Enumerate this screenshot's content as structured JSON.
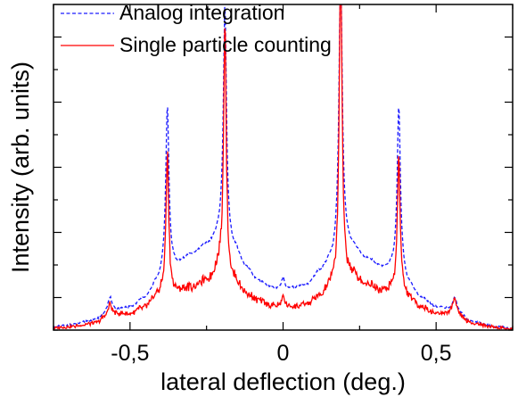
{
  "chart_data": {
    "type": "line",
    "title": "",
    "xlabel": "lateral deflection (deg.)",
    "ylabel": "Intensity (arb. units)",
    "xlim": [
      -0.75,
      0.75
    ],
    "ylim": [
      0,
      1.0
    ],
    "x_ticks": [
      {
        "value": -0.5,
        "label": "-0,5"
      },
      {
        "value": 0,
        "label": "0"
      },
      {
        "value": 0.5,
        "label": "0,5"
      }
    ],
    "y_tick_labels_shown": false,
    "grid": false,
    "legend_position": "top-left",
    "series": [
      {
        "name": "Analog integration",
        "color": "#1a1aff",
        "style": "dashed",
        "baseline": [
          [
            -0.75,
            0.01
          ],
          [
            -0.7,
            0.015
          ],
          [
            -0.62,
            0.03
          ],
          [
            -0.56,
            0.06
          ],
          [
            -0.5,
            0.07
          ],
          [
            -0.45,
            0.1
          ],
          [
            -0.41,
            0.15
          ],
          [
            -0.38,
            0.2
          ],
          [
            -0.35,
            0.2
          ],
          [
            -0.3,
            0.23
          ],
          [
            -0.25,
            0.26
          ],
          [
            -0.2,
            0.3
          ],
          [
            -0.16,
            0.25
          ],
          [
            -0.12,
            0.19
          ],
          [
            -0.08,
            0.15
          ],
          [
            -0.04,
            0.13
          ],
          [
            0,
            0.12
          ],
          [
            0.04,
            0.13
          ],
          [
            0.08,
            0.14
          ],
          [
            0.12,
            0.18
          ],
          [
            0.16,
            0.22
          ],
          [
            0.19,
            0.3
          ],
          [
            0.22,
            0.26
          ],
          [
            0.27,
            0.22
          ],
          [
            0.33,
            0.19
          ],
          [
            0.38,
            0.2
          ],
          [
            0.41,
            0.14
          ],
          [
            0.45,
            0.1
          ],
          [
            0.5,
            0.07
          ],
          [
            0.56,
            0.06
          ],
          [
            0.62,
            0.025
          ],
          [
            0.7,
            0.01
          ],
          [
            0.75,
            0.005
          ]
        ],
        "peaks": [
          {
            "x": -0.565,
            "y": 0.1,
            "width": 0.008
          },
          {
            "x": -0.378,
            "y": 0.69,
            "width": 0.006
          },
          {
            "x": -0.19,
            "y": 1.0,
            "width": 0.006
          },
          {
            "x": 0.0,
            "y": 0.16,
            "width": 0.007
          },
          {
            "x": 0.188,
            "y": 1.12,
            "width": 0.006
          },
          {
            "x": 0.378,
            "y": 0.69,
            "width": 0.006
          },
          {
            "x": 0.56,
            "y": 0.1,
            "width": 0.008
          }
        ]
      },
      {
        "name": "Single particle counting",
        "color": "#ff0000",
        "style": "solid",
        "baseline": [
          [
            -0.75,
            0.005
          ],
          [
            -0.7,
            0.01
          ],
          [
            -0.62,
            0.02
          ],
          [
            -0.56,
            0.05
          ],
          [
            -0.5,
            0.05
          ],
          [
            -0.45,
            0.07
          ],
          [
            -0.41,
            0.11
          ],
          [
            -0.38,
            0.14
          ],
          [
            -0.35,
            0.12
          ],
          [
            -0.3,
            0.13
          ],
          [
            -0.25,
            0.15
          ],
          [
            -0.2,
            0.2
          ],
          [
            -0.16,
            0.15
          ],
          [
            -0.12,
            0.11
          ],
          [
            -0.08,
            0.09
          ],
          [
            -0.04,
            0.075
          ],
          [
            0,
            0.07
          ],
          [
            0.04,
            0.07
          ],
          [
            0.08,
            0.08
          ],
          [
            0.12,
            0.1
          ],
          [
            0.16,
            0.14
          ],
          [
            0.19,
            0.2
          ],
          [
            0.22,
            0.17
          ],
          [
            0.27,
            0.14
          ],
          [
            0.33,
            0.12
          ],
          [
            0.38,
            0.14
          ],
          [
            0.41,
            0.1
          ],
          [
            0.45,
            0.07
          ],
          [
            0.5,
            0.05
          ],
          [
            0.56,
            0.05
          ],
          [
            0.62,
            0.02
          ],
          [
            0.7,
            0.008
          ],
          [
            0.75,
            0.003
          ]
        ],
        "peaks": [
          {
            "x": -0.565,
            "y": 0.08,
            "width": 0.007
          },
          {
            "x": -0.378,
            "y": 0.54,
            "width": 0.005
          },
          {
            "x": -0.19,
            "y": 0.96,
            "width": 0.005
          },
          {
            "x": 0.0,
            "y": 0.1,
            "width": 0.006
          },
          {
            "x": 0.188,
            "y": 1.18,
            "width": 0.005
          },
          {
            "x": 0.378,
            "y": 0.54,
            "width": 0.005
          },
          {
            "x": 0.56,
            "y": 0.1,
            "width": 0.007
          }
        ]
      }
    ]
  }
}
